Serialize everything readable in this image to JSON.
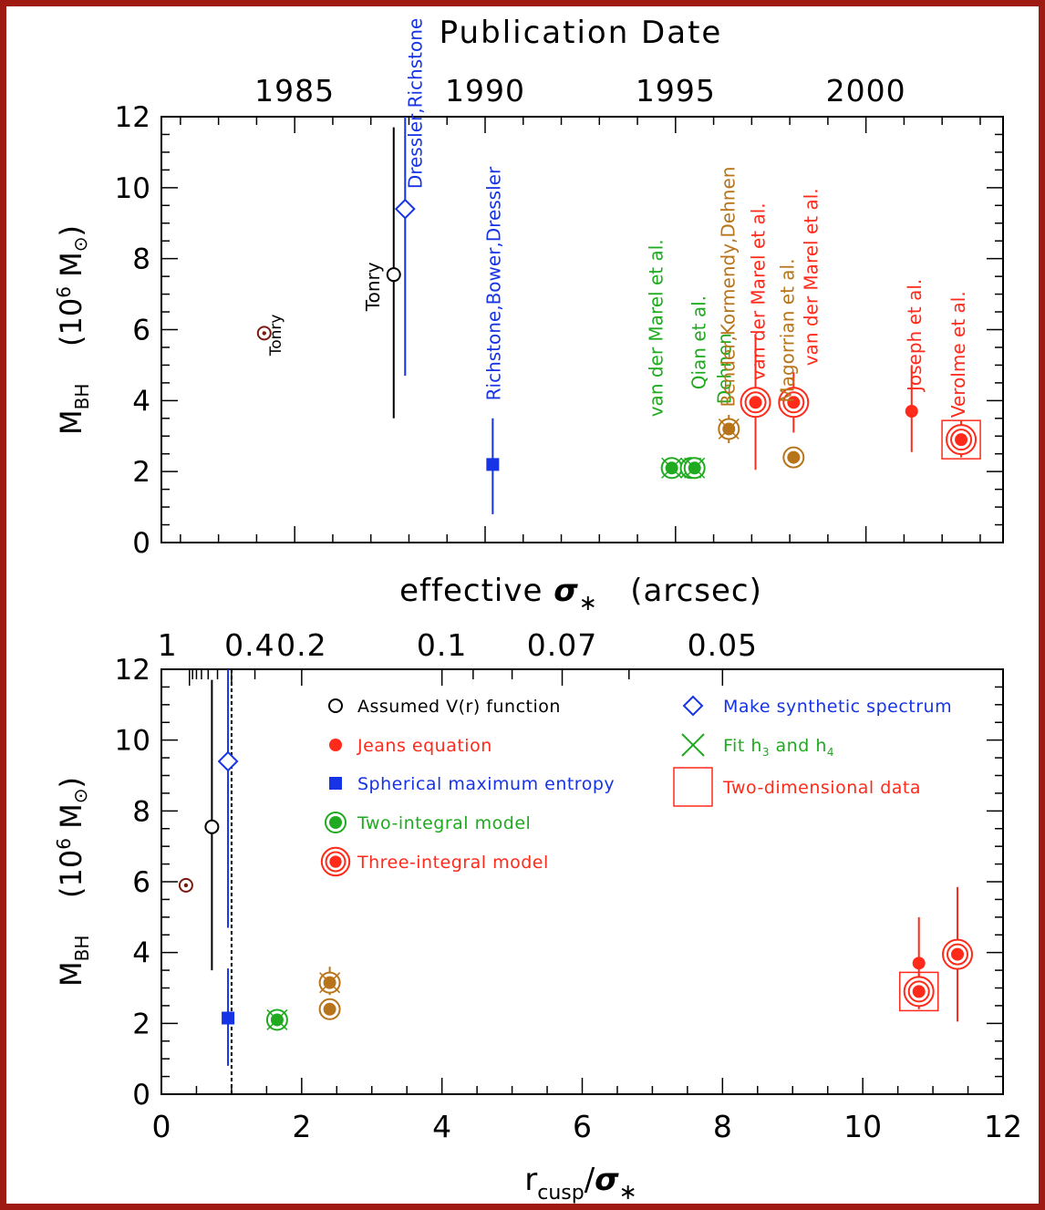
{
  "chart_data": [
    {
      "type": "scatter",
      "title": "Publication Date",
      "xlabel": "Publication Date",
      "ylabel": {
        "main": "M",
        "sub": "BH",
        "unit_pre": "(10",
        "unit_exp": "6",
        "unit_post": " M",
        "unit_sym": "⊙",
        "unit_close": ")"
      },
      "xlim": [
        1981.5,
        2003.6
      ],
      "ylim": [
        0,
        12
      ],
      "x_ticklabels": [
        "1985",
        "1990",
        "1995",
        "2000"
      ],
      "y_ticklabels": [
        "0",
        "2",
        "4",
        "6",
        "8",
        "10",
        "12"
      ],
      "points": [
        {
          "x": 1984.2,
          "y": 5.9,
          "yerr": null,
          "marker": "dot-circle",
          "color": "#7a1a10",
          "label": "Tonry",
          "label_color": "#000000"
        },
        {
          "x": 1987.6,
          "y": 7.55,
          "yerr": [
            3.5,
            11.7
          ],
          "marker": "open-circle",
          "color": "#000000",
          "label": "Tonry",
          "label_color": "#000000"
        },
        {
          "x": 1987.9,
          "y": 9.4,
          "yerr": [
            4.7,
            12.0
          ],
          "marker": "diamond",
          "color": "#1633e6",
          "label": "Dressler,Richstone",
          "label_color": "#1633e6"
        },
        {
          "x": 1990.2,
          "y": 2.2,
          "yerr": [
            0.8,
            3.5
          ],
          "marker": "square",
          "color": "#1633e6",
          "label": "Richstone,Bower,Dressler",
          "label_color": "#1633e6"
        },
        {
          "x": 1994.9,
          "y": 2.1,
          "yerr": null,
          "marker": "two-integral-x",
          "color": "#1faa1f",
          "label": "van der Marel et al.",
          "label_color": "#1faa1f"
        },
        {
          "x": 1995.4,
          "y": 2.1,
          "yerr": null,
          "marker": "two-integral-x",
          "color": "#1faa1f",
          "label": "Qian et al.",
          "label_color": "#1faa1f"
        },
        {
          "x": 1995.5,
          "y": 2.1,
          "yerr": null,
          "marker": "two-integral-x",
          "color": "#1faa1f",
          "label": "Dehnen",
          "label_color": "#1faa1f"
        },
        {
          "x": 1996.4,
          "y": 3.2,
          "yerr": [
            2.8,
            3.6
          ],
          "marker": "two-integral-x",
          "color": "#b8741a",
          "label": "Bender,Kormendy,Dehnen",
          "label_color": "#b8741a"
        },
        {
          "x": 1997.1,
          "y": 3.95,
          "yerr": [
            2.05,
            5.85
          ],
          "marker": "three-integral",
          "color": "#ff2a1a",
          "label": "van der Marel et al.",
          "label_color": "#ff2a1a"
        },
        {
          "x": 1998.1,
          "y": 2.4,
          "yerr": null,
          "marker": "two-integral",
          "color": "#b8741a",
          "label": "Magorrian et al.",
          "label_color": "#b8741a"
        },
        {
          "x": 1998.1,
          "y": 3.95,
          "yerr": [
            3.1,
            4.8
          ],
          "marker": "three-integral",
          "color": "#ff2a1a",
          "label": "van der Marel et al.",
          "label_color": "#ff2a1a"
        },
        {
          "x": 2001.2,
          "y": 3.7,
          "yerr": [
            2.55,
            5.0
          ],
          "marker": "filled-circle",
          "color": "#ff2a1a",
          "label": "Joseph et al.",
          "label_color": "#ff2a1a"
        },
        {
          "x": 2002.5,
          "y": 2.9,
          "yerr": [
            2.4,
            3.45
          ],
          "marker": "three-integral-square",
          "color": "#ff2a1a",
          "label": "Verolme et al.",
          "label_color": "#ff2a1a"
        }
      ]
    },
    {
      "type": "scatter",
      "top_axis_title": {
        "pre": "effective ",
        "sym": "σ",
        "sub": "∗",
        "post": "   (arcsec)"
      },
      "top_ticklabels": [
        "1",
        "0.4",
        "0.2",
        "0.1",
        "0.07",
        "0.05"
      ],
      "top_tick_values_arcsec": [
        1,
        0.4,
        0.2,
        0.1,
        0.07,
        0.05
      ],
      "xlabel": {
        "main": "r",
        "sub": "cusp",
        "slash": "/",
        "sym": "σ",
        "sym_sub": "∗"
      },
      "ylabel": {
        "main": "M",
        "sub": "BH",
        "unit_pre": "(10",
        "unit_exp": "6",
        "unit_post": " M",
        "unit_sym": "⊙",
        "unit_close": ")"
      },
      "xlim": [
        0,
        12
      ],
      "ylim": [
        0,
        12
      ],
      "x_ticklabels": [
        "0",
        "2",
        "4",
        "6",
        "8",
        "10",
        "12"
      ],
      "y_ticklabels": [
        "0",
        "2",
        "4",
        "6",
        "8",
        "10",
        "12"
      ],
      "vline_x": 1,
      "points": [
        {
          "x": 0.35,
          "y": 5.9,
          "yerr": null,
          "marker": "dot-circle",
          "color": "#7a1a10"
        },
        {
          "x": 0.72,
          "y": 7.55,
          "yerr": [
            3.5,
            11.7
          ],
          "marker": "open-circle",
          "color": "#000000"
        },
        {
          "x": 0.95,
          "y": 9.4,
          "yerr": [
            4.7,
            12.0
          ],
          "marker": "diamond",
          "color": "#1633e6"
        },
        {
          "x": 0.95,
          "y": 2.15,
          "yerr": [
            0.8,
            3.55
          ],
          "marker": "square",
          "color": "#1633e6"
        },
        {
          "x": 1.65,
          "y": 2.1,
          "yerr": null,
          "marker": "two-integral-x",
          "color": "#1faa1f"
        },
        {
          "x": 2.4,
          "y": 3.15,
          "yerr": [
            2.8,
            3.6
          ],
          "marker": "two-integral-x",
          "color": "#b8741a"
        },
        {
          "x": 2.4,
          "y": 2.4,
          "yerr": null,
          "marker": "two-integral",
          "color": "#b8741a"
        },
        {
          "x": 10.8,
          "y": 3.7,
          "yerr": [
            2.55,
            5.0
          ],
          "marker": "filled-circle",
          "color": "#ff2a1a"
        },
        {
          "x": 10.8,
          "y": 2.9,
          "yerr": [
            2.4,
            3.45
          ],
          "marker": "three-integral-square",
          "color": "#ff2a1a"
        },
        {
          "x": 11.35,
          "y": 3.95,
          "yerr": [
            2.05,
            5.85
          ],
          "marker": "three-integral",
          "color": "#ff2a1a"
        }
      ],
      "legend": [
        {
          "marker": "open-circle",
          "color": "#000000",
          "label": "Assumed V(r) function"
        },
        {
          "marker": "filled-circle",
          "color": "#ff2a1a",
          "label": "Jeans equation"
        },
        {
          "marker": "square",
          "color": "#1633e6",
          "label": "Spherical maximum entropy"
        },
        {
          "marker": "two-integral",
          "color": "#1faa1f",
          "label": "Two-integral model"
        },
        {
          "marker": "three-integral",
          "color": "#ff2a1a",
          "label": "Three-integral model"
        },
        {
          "marker": "diamond",
          "color": "#1633e6",
          "label": "Make synthetic spectrum"
        },
        {
          "marker": "x",
          "color": "#1faa1f",
          "label": "Fit h",
          "sub1": "3",
          "mid": " and h",
          "sub2": "4"
        },
        {
          "marker": "big-square",
          "color": "#ff2a1a",
          "label": "Two-dimensional data"
        }
      ]
    }
  ]
}
